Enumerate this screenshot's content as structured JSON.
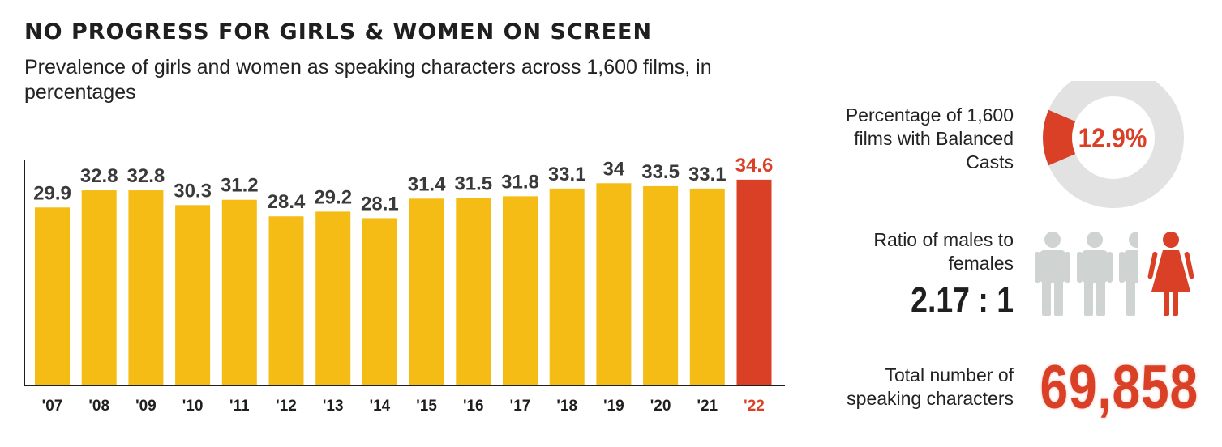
{
  "title": "NO PROGRESS FOR GIRLS & WOMEN ON SCREEN",
  "subtitle": "Prevalence of girls and women as speaking characters across 1,600 films, in percentages",
  "colors": {
    "bar": "#f6bc16",
    "highlight": "#d94026",
    "text": "#3a3a3a",
    "donut_track": "#e2e2e2",
    "male_icon": "#cfd3d2"
  },
  "chart_data": {
    "type": "bar",
    "title": "NO PROGRESS FOR GIRLS & WOMEN ON SCREEN",
    "subtitle": "Prevalence of girls and women as speaking characters across 1,600 films, in percentages",
    "xlabel": "",
    "ylabel": "",
    "ylim": [
      0,
      38
    ],
    "grid": false,
    "categories": [
      "'07",
      "'08",
      "'09",
      "'10",
      "'11",
      "'12",
      "'13",
      "'14",
      "'15",
      "'16",
      "'17",
      "'18",
      "'19",
      "'20",
      "'21",
      "'22"
    ],
    "values": [
      29.9,
      32.8,
      32.8,
      30.3,
      31.2,
      28.4,
      29.2,
      28.1,
      31.4,
      31.5,
      31.8,
      33.1,
      34,
      33.5,
      33.1,
      34.6
    ],
    "value_labels": [
      "29.9",
      "32.8",
      "32.8",
      "30.3",
      "31.2",
      "28.4",
      "29.2",
      "28.1",
      "31.4",
      "31.5",
      "31.8",
      "33.1",
      "34",
      "33.5",
      "33.1",
      "34.6"
    ],
    "highlight_index": 15
  },
  "balanced_casts": {
    "label": "Percentage of 1,600 films with Balanced Casts",
    "value": 12.9,
    "value_text": "12.9%"
  },
  "ratio": {
    "label": "Ratio of males to females",
    "value_text": "2.17 : 1",
    "males": 2.17,
    "females": 1
  },
  "total": {
    "label": "Total number of speaking characters",
    "value_text": "69,858"
  }
}
